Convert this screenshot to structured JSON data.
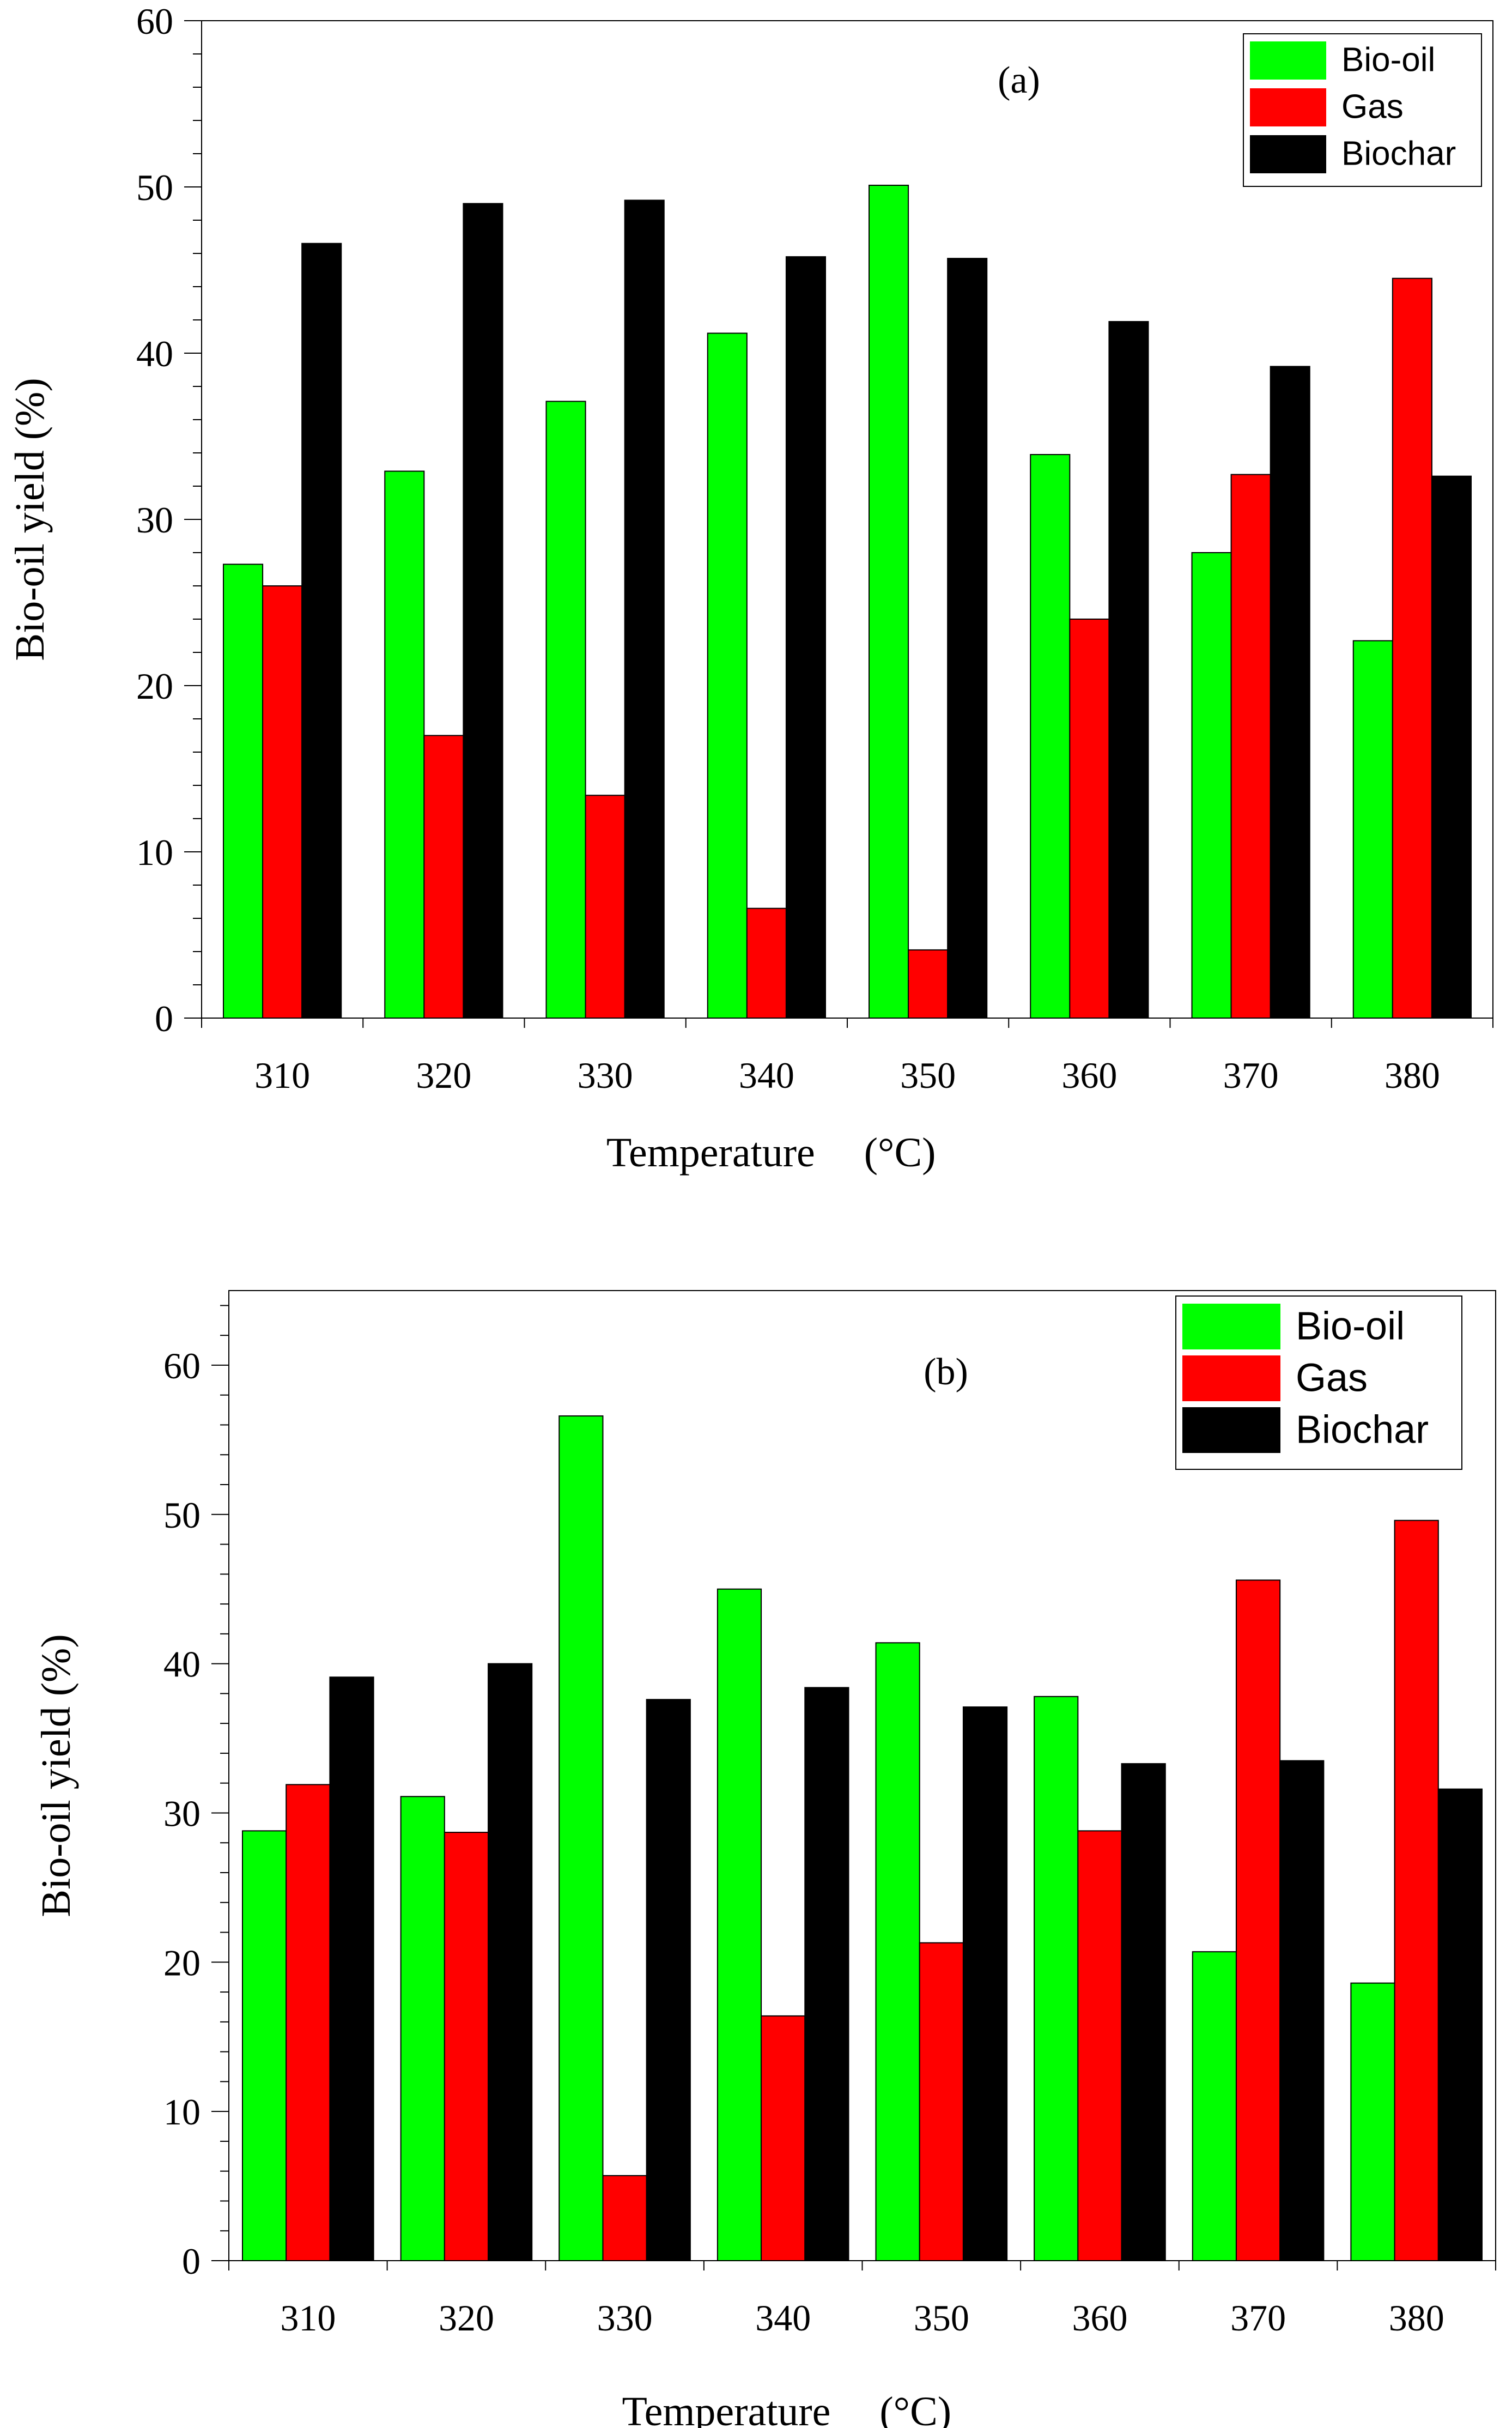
{
  "colors": {
    "bio_oil": "#00ff00",
    "gas": "#ff0000",
    "biochar": "#000000"
  },
  "chart_data": [
    {
      "type": "bar",
      "panel_label": "(a)",
      "categories": [
        "310",
        "320",
        "330",
        "340",
        "350",
        "360",
        "370",
        "380"
      ],
      "series": [
        {
          "name": "Bio-oil",
          "values": [
            27.3,
            32.9,
            37.1,
            41.2,
            50.1,
            33.9,
            28.0,
            22.7
          ]
        },
        {
          "name": "Gas",
          "values": [
            26.0,
            17.0,
            13.4,
            6.6,
            4.1,
            24.0,
            32.7,
            44.5
          ]
        },
        {
          "name": "Biochar",
          "values": [
            46.6,
            49.0,
            49.2,
            45.8,
            45.7,
            41.9,
            39.2,
            32.6
          ]
        }
      ],
      "xlabel_text": "Temperature",
      "xlabel_unit": "(°C)",
      "ylabel": "Bio-oil yield (%)",
      "ylim": [
        0,
        60
      ],
      "yticks": [
        "0",
        "10",
        "20",
        "30",
        "40",
        "50",
        "60"
      ],
      "legend_position": "top-right",
      "grid": false
    },
    {
      "type": "bar",
      "panel_label": "(b)",
      "categories": [
        "310",
        "320",
        "330",
        "340",
        "350",
        "360",
        "370",
        "380"
      ],
      "series": [
        {
          "name": "Bio-oil",
          "values": [
            28.8,
            31.1,
            56.6,
            45.0,
            41.4,
            37.8,
            20.7,
            18.6
          ]
        },
        {
          "name": "Gas",
          "values": [
            31.9,
            28.7,
            5.7,
            16.4,
            21.3,
            28.8,
            45.6,
            49.6
          ]
        },
        {
          "name": "Biochar",
          "values": [
            39.1,
            40.0,
            37.6,
            38.4,
            37.1,
            33.3,
            33.5,
            31.6
          ]
        }
      ],
      "xlabel_text": "Temperature",
      "xlabel_unit": "(°C)",
      "ylabel": "Bio-oil yield (%)",
      "ylim": [
        0,
        65
      ],
      "yticks": [
        "0",
        "10",
        "20",
        "30",
        "40",
        "50",
        "60"
      ],
      "legend_position": "top-right",
      "grid": false
    }
  ]
}
